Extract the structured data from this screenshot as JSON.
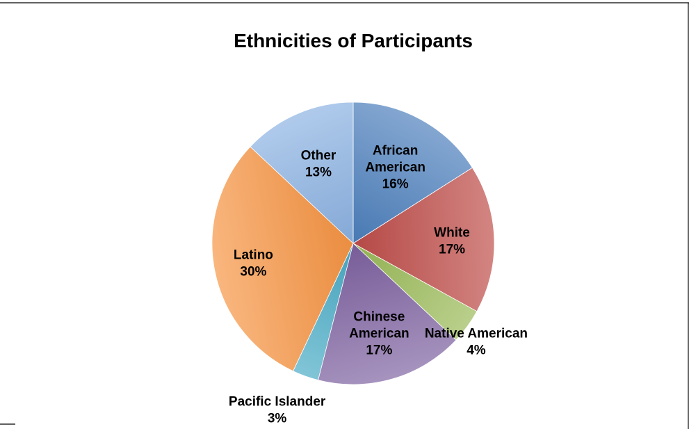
{
  "chart_data": {
    "type": "pie",
    "title": "Ethnicities of Participants",
    "start": "12 o'clock",
    "direction": "clockwise",
    "slices": [
      {
        "label": "African American",
        "value": 16,
        "value_label": "16%",
        "color": "#4f81bd"
      },
      {
        "label": "White",
        "value": 17,
        "value_label": "17%",
        "color": "#c0504d"
      },
      {
        "label": "Native American",
        "value": 4,
        "value_label": "4%",
        "color": "#9bbb59"
      },
      {
        "label": "Chinese American",
        "value": 17,
        "value_label": "17%",
        "color": "#8064a2"
      },
      {
        "label": "Pacific Islander",
        "value": 3,
        "value_label": "3%",
        "color": "#4bacc6"
      },
      {
        "label": "Latino",
        "value": 30,
        "value_label": "30%",
        "color": "#f79646"
      },
      {
        "label": "Other",
        "value": 13,
        "value_label": "13%",
        "color": "#8db3e2"
      }
    ]
  }
}
